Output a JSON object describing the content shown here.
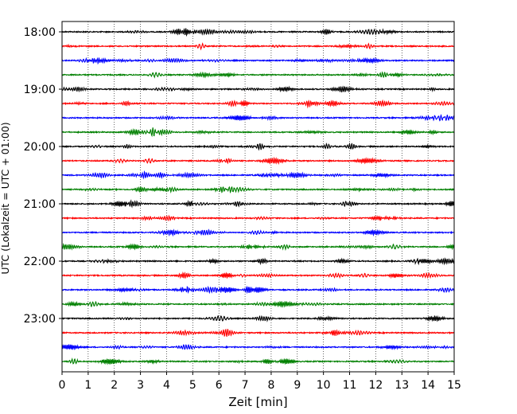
{
  "chart_data": {
    "type": "line",
    "title": "",
    "xlabel": "Zeit  [min]",
    "ylabel": "UTC (Lokalzeit = UTC + 01:00)",
    "xlim": [
      0,
      15
    ],
    "x_ticks": [
      "0",
      "1",
      "2",
      "3",
      "4",
      "5",
      "6",
      "7",
      "8",
      "9",
      "10",
      "11",
      "12",
      "13",
      "14",
      "15"
    ],
    "y_ticks": [
      "18:00",
      "19:00",
      "20:00",
      "21:00",
      "22:00",
      "23:00"
    ],
    "trace_interval_minutes": 15,
    "grid": "vertical-dotted",
    "colors": [
      "#000000",
      "#ff0000",
      "#0000ff",
      "#008000"
    ],
    "rows": [
      {
        "start": "18:00",
        "color": "#000000"
      },
      {
        "start": "18:15",
        "color": "#ff0000"
      },
      {
        "start": "18:30",
        "color": "#0000ff"
      },
      {
        "start": "18:45",
        "color": "#008000"
      },
      {
        "start": "19:00",
        "color": "#000000"
      },
      {
        "start": "19:15",
        "color": "#ff0000"
      },
      {
        "start": "19:30",
        "color": "#0000ff"
      },
      {
        "start": "19:45",
        "color": "#008000"
      },
      {
        "start": "20:00",
        "color": "#000000"
      },
      {
        "start": "20:15",
        "color": "#ff0000"
      },
      {
        "start": "20:30",
        "color": "#0000ff"
      },
      {
        "start": "20:45",
        "color": "#008000"
      },
      {
        "start": "21:00",
        "color": "#000000"
      },
      {
        "start": "21:15",
        "color": "#ff0000"
      },
      {
        "start": "21:30",
        "color": "#0000ff"
      },
      {
        "start": "21:45",
        "color": "#008000"
      },
      {
        "start": "22:00",
        "color": "#000000"
      },
      {
        "start": "22:15",
        "color": "#ff0000"
      },
      {
        "start": "22:30",
        "color": "#0000ff"
      },
      {
        "start": "22:45",
        "color": "#008000"
      },
      {
        "start": "23:00",
        "color": "#000000"
      },
      {
        "start": "23:15",
        "color": "#ff0000"
      },
      {
        "start": "23:30",
        "color": "#0000ff"
      },
      {
        "start": "23:45",
        "color": "#008000"
      }
    ]
  }
}
